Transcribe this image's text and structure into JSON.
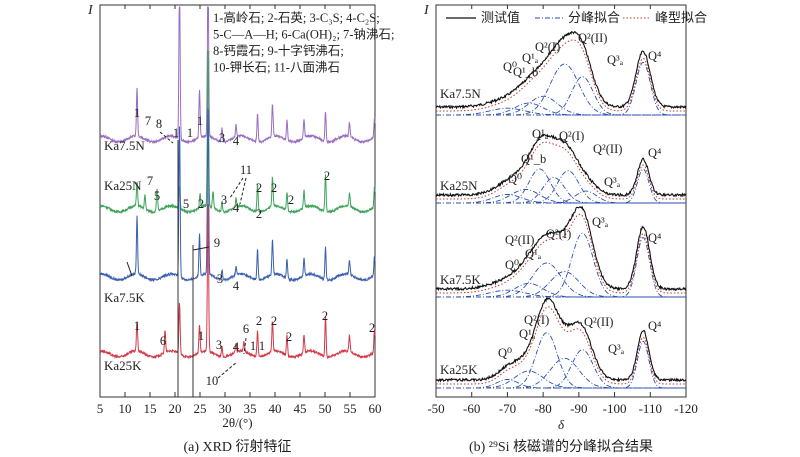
{
  "chart_data": [
    {
      "type": "line",
      "panel_caption": "(a) XRD 衍射特征",
      "ylabel": "I",
      "xlabel": "2θ/(°)",
      "xlim": [
        5,
        60
      ],
      "xticks": [
        5,
        10,
        15,
        20,
        25,
        30,
        35,
        40,
        45,
        50,
        55,
        60
      ],
      "legend_text": [
        "1-高岭石; 2-石英; 3-C₃S; 4-C₂S;",
        "5-C—A—H; 6-Ca(OH)₂; 7-钠沸石;",
        "8-钙霞石; 9-十字钙沸石;",
        "10-钾长石; 11-八面沸石"
      ],
      "series": [
        {
          "name": "Ka7.5N",
          "color": "#9b6dc0",
          "peaks": [
            [
              12.4,
              48
            ],
            [
              20.9,
              150
            ],
            [
              24.9,
              48
            ],
            [
              26.6,
              175
            ],
            [
              29.4,
              14
            ],
            [
              32.2,
              12
            ],
            [
              36.5,
              28
            ],
            [
              39.5,
              32
            ],
            [
              42.4,
              20
            ],
            [
              45.8,
              18
            ],
            [
              50.1,
              30
            ],
            [
              54.9,
              14
            ],
            [
              59.9,
              20
            ]
          ]
        },
        {
          "name": "Ka25N",
          "color": "#3fa35c",
          "peaks": [
            [
              12.4,
              25
            ],
            [
              14.0,
              14
            ],
            [
              16.4,
              22
            ],
            [
              20.9,
              22
            ],
            [
              25.0,
              14
            ],
            [
              26.6,
              160
            ],
            [
              27.6,
              16
            ],
            [
              29.4,
              10
            ],
            [
              32.2,
              8
            ],
            [
              36.5,
              28
            ],
            [
              39.5,
              30
            ],
            [
              42.4,
              18
            ],
            [
              45.8,
              18
            ],
            [
              50.1,
              38
            ],
            [
              54.9,
              14
            ],
            [
              59.9,
              22
            ]
          ]
        },
        {
          "name": "Ka7.5K",
          "color": "#3a5fb0",
          "peaks": [
            [
              12.4,
              58
            ],
            [
              20.9,
              150
            ],
            [
              24.9,
              42
            ],
            [
              26.6,
              170
            ],
            [
              29.4,
              10
            ],
            [
              32.2,
              8
            ],
            [
              36.5,
              30
            ],
            [
              39.5,
              35
            ],
            [
              42.4,
              20
            ],
            [
              45.8,
              18
            ],
            [
              50.1,
              32
            ],
            [
              54.9,
              14
            ],
            [
              59.9,
              20
            ]
          ]
        },
        {
          "name": "Ka25K",
          "color": "#d23a4a",
          "peaks": [
            [
              12.4,
              30
            ],
            [
              18.0,
              22
            ],
            [
              20.9,
              50
            ],
            [
              24.9,
              28
            ],
            [
              26.6,
              150
            ],
            [
              29.4,
              10
            ],
            [
              32.2,
              8
            ],
            [
              33.8,
              10
            ],
            [
              36.5,
              26
            ],
            [
              39.5,
              30
            ],
            [
              42.4,
              20
            ],
            [
              45.8,
              18
            ],
            [
              50.1,
              40
            ],
            [
              54.9,
              16
            ],
            [
              59.9,
              24
            ]
          ]
        }
      ],
      "annotations": [
        "1",
        "7",
        "8",
        "1",
        "1",
        "1",
        "3",
        "4",
        "11",
        "5",
        "5",
        "2",
        "2",
        "2",
        "2",
        "2",
        "2",
        "4",
        "3",
        "7",
        "9",
        "3",
        "4",
        "1",
        "6",
        "1",
        "6",
        "2",
        "2",
        "2",
        "2",
        "2",
        "3",
        "4",
        "1",
        "1",
        "10"
      ]
    },
    {
      "type": "line",
      "panel_caption": "(b) ²⁹Si 核磁谱的分峰拟合结果",
      "ylabel": "I",
      "xlabel": "δ",
      "xlim": [
        -50,
        -120
      ],
      "xticks": [
        -50,
        -60,
        -70,
        -80,
        -90,
        -100,
        -110,
        -120
      ],
      "legend": [
        "测试值",
        "分峰拟合",
        "峰型拟合"
      ],
      "series": [
        {
          "name": "Ka7.5N",
          "components": [
            [
              -70,
              8,
              5
            ],
            [
              -76,
              14,
              4
            ],
            [
              -80,
              22,
              4
            ],
            [
              -86,
              60,
              4
            ],
            [
              -91,
              45,
              3
            ],
            [
              -108,
              62,
              2
            ]
          ]
        },
        {
          "name": "Ka25N",
          "components": [
            [
              -70,
              10,
              4
            ],
            [
              -75,
              16,
              4
            ],
            [
              -79,
              40,
              3
            ],
            [
              -83,
              30,
              3
            ],
            [
              -87,
              38,
              3
            ],
            [
              -92,
              14,
              3
            ],
            [
              -108,
              40,
              1.6
            ]
          ]
        },
        {
          "name": "Ka7.5K",
          "components": [
            [
              -70,
              8,
              5
            ],
            [
              -76,
              16,
              4
            ],
            [
              -81,
              40,
              4
            ],
            [
              -86,
              30,
              4
            ],
            [
              -91,
              75,
              3
            ],
            [
              -108,
              70,
              1.8
            ]
          ]
        },
        {
          "name": "Ka25K",
          "components": [
            [
              -70,
              10,
              3
            ],
            [
              -76,
              20,
              4
            ],
            [
              -81,
              65,
              3
            ],
            [
              -86,
              35,
              4
            ],
            [
              -91,
              45,
              3
            ],
            [
              -108,
              55,
              1.6
            ]
          ]
        }
      ],
      "annotations": [
        "Q⁰",
        "Q¹ₐ",
        "Q¹_b",
        "Q²(I)",
        "Q²(II)",
        "Q³ₐ",
        "Q⁴",
        "Q¹ₐ",
        "Q⁰",
        "Q¹_b",
        "Q²(I)",
        "Q²(II)",
        "Q³ₐ",
        "Q⁴",
        "Q²(II)",
        "Q²(I)",
        "Q³ₐ",
        "Q⁰",
        "Q¹ₐ",
        "Q⁴",
        "Q²(I)",
        "Q¹ₐ",
        "Q²(II)",
        "Q⁰",
        "Q³ₐ",
        "Q⁴"
      ]
    }
  ]
}
